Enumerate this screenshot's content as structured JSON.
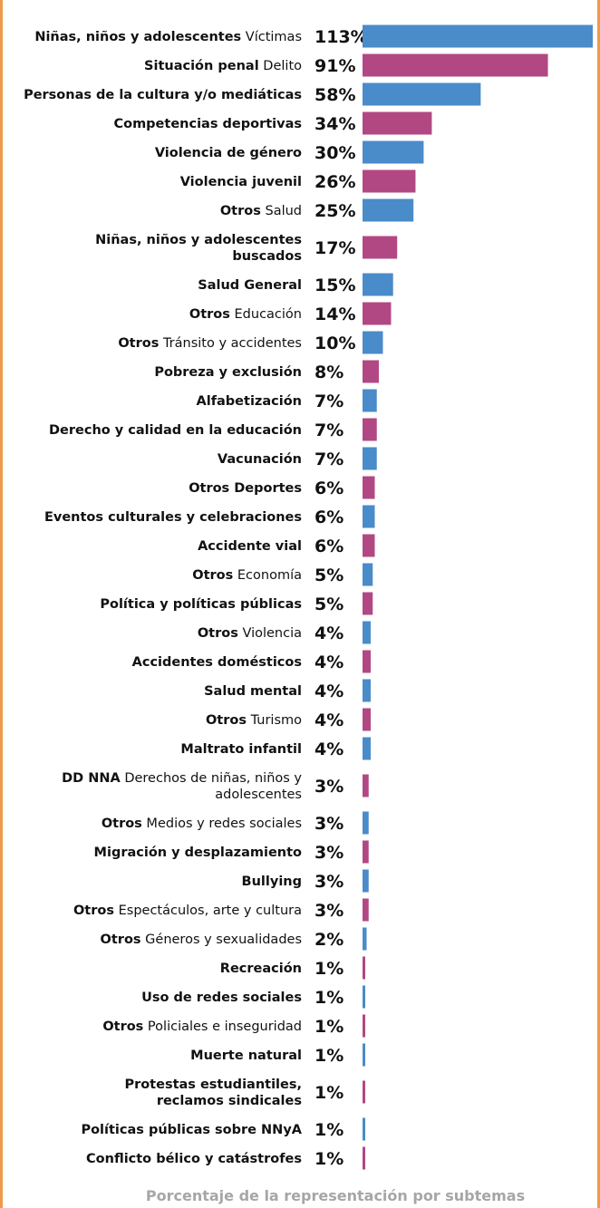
{
  "chart_data": {
    "type": "bar",
    "orientation": "horizontal",
    "caption": "Porcentaje de la representación por subtemas",
    "colors": {
      "blue": "#4a8bc9",
      "magenta": "#b24883",
      "caption": "#a6a6a6",
      "border": "#ef9a4a"
    },
    "xlim": [
      0,
      113
    ],
    "categories": [
      {
        "bold": "Niñas, niños y adolescentes",
        "light": " Víctimas",
        "value": 113,
        "label": "113%",
        "color": "blue"
      },
      {
        "bold": "Situación penal",
        "light": " Delito",
        "value": 91,
        "label": "91%",
        "color": "magenta"
      },
      {
        "bold": "Personas de la cultura y/o mediáticas",
        "light": "",
        "value": 58,
        "label": "58%",
        "color": "blue"
      },
      {
        "bold": "Competencias deportivas",
        "light": "",
        "value": 34,
        "label": "34%",
        "color": "magenta"
      },
      {
        "bold": "Violencia de género",
        "light": "",
        "value": 30,
        "label": "30%",
        "color": "blue"
      },
      {
        "bold": "Violencia juvenil",
        "light": "",
        "value": 26,
        "label": "26%",
        "color": "magenta"
      },
      {
        "bold": "Otros",
        "light": " Salud",
        "value": 25,
        "label": "25%",
        "color": "blue"
      },
      {
        "lines": [
          {
            "bold": "Niñas, niños y adolescentes",
            "light": ""
          },
          {
            "bold": "buscados",
            "light": ""
          }
        ],
        "value": 17,
        "label": "17%",
        "color": "magenta"
      },
      {
        "bold": "Salud General",
        "light": "",
        "value": 15,
        "label": "15%",
        "color": "blue"
      },
      {
        "bold": "Otros",
        "light": " Educación",
        "value": 14,
        "label": "14%",
        "color": "magenta"
      },
      {
        "bold": "Otros",
        "light": " Tránsito y accidentes",
        "value": 10,
        "label": "10%",
        "color": "blue"
      },
      {
        "bold": "Pobreza y exclusión",
        "light": "",
        "value": 8,
        "label": "8%",
        "color": "magenta"
      },
      {
        "bold": "Alfabetización",
        "light": "",
        "value": 7,
        "label": "7%",
        "color": "blue"
      },
      {
        "bold": "Derecho y calidad en la educación",
        "light": "",
        "value": 7,
        "label": "7%",
        "color": "magenta"
      },
      {
        "bold": "Vacunación",
        "light": "",
        "value": 7,
        "label": "7%",
        "color": "blue"
      },
      {
        "bold": "Otros Deportes",
        "light": "",
        "value": 6,
        "label": "6%",
        "color": "magenta"
      },
      {
        "bold": "Eventos culturales y celebraciones",
        "light": "",
        "value": 6,
        "label": "6%",
        "color": "blue"
      },
      {
        "bold": "Accidente vial",
        "light": "",
        "value": 6,
        "label": "6%",
        "color": "magenta"
      },
      {
        "bold": "Otros",
        "light": " Economía",
        "value": 5,
        "label": "5%",
        "color": "blue"
      },
      {
        "bold": "Política y políticas públicas",
        "light": "",
        "value": 5,
        "label": "5%",
        "color": "magenta"
      },
      {
        "bold": "Otros",
        "light": " Violencia",
        "value": 4,
        "label": "4%",
        "color": "blue"
      },
      {
        "bold": "Accidentes domésticos",
        "light": "",
        "value": 4,
        "label": "4%",
        "color": "magenta"
      },
      {
        "bold": "Salud mental",
        "light": "",
        "value": 4,
        "label": "4%",
        "color": "blue"
      },
      {
        "bold": "Otros",
        "light": " Turismo",
        "value": 4,
        "label": "4%",
        "color": "magenta"
      },
      {
        "bold": "Maltrato infantil",
        "light": "",
        "value": 4,
        "label": "4%",
        "color": "blue"
      },
      {
        "lines": [
          {
            "bold": "DD NNA",
            "light": " Derechos de niñas, niños y"
          },
          {
            "bold": "",
            "light": "adolescentes"
          }
        ],
        "value": 3,
        "label": "3%",
        "color": "magenta"
      },
      {
        "bold": "Otros",
        "light": " Medios y redes sociales",
        "value": 3,
        "label": "3%",
        "color": "blue"
      },
      {
        "bold": "Migración y desplazamiento",
        "light": "",
        "value": 3,
        "label": "3%",
        "color": "magenta"
      },
      {
        "bold": "Bullying",
        "light": "",
        "value": 3,
        "label": "3%",
        "color": "blue"
      },
      {
        "bold": "Otros",
        "light": " Espectáculos, arte y cultura",
        "value": 3,
        "label": "3%",
        "color": "magenta"
      },
      {
        "bold": "Otros",
        "light": " Géneros y sexualidades",
        "value": 2,
        "label": "2%",
        "color": "blue"
      },
      {
        "bold": "Recreación",
        "light": "",
        "value": 1,
        "label": "1%",
        "color": "magenta"
      },
      {
        "bold": "Uso de redes sociales",
        "light": "",
        "value": 1,
        "label": "1%",
        "color": "blue"
      },
      {
        "bold": "Otros",
        "light": " Policiales e inseguridad",
        "value": 1,
        "label": "1%",
        "color": "magenta"
      },
      {
        "bold": "Muerte natural",
        "light": "",
        "value": 1,
        "label": "1%",
        "color": "blue"
      },
      {
        "lines": [
          {
            "bold": "Protestas estudiantiles,",
            "light": ""
          },
          {
            "bold": "reclamos sindicales",
            "light": ""
          }
        ],
        "value": 1,
        "label": "1%",
        "color": "magenta"
      },
      {
        "bold": "Políticas públicas sobre NNyA",
        "light": "",
        "value": 1,
        "label": "1%",
        "color": "blue"
      },
      {
        "bold": "Conflicto bélico y catástrofes",
        "light": "",
        "value": 1,
        "label": "1%",
        "color": "magenta"
      }
    ]
  }
}
